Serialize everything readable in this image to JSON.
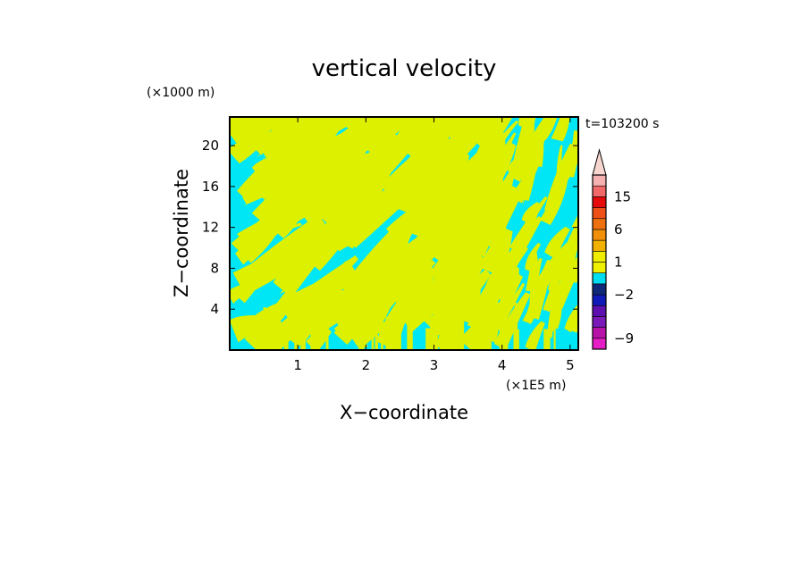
{
  "chart_data": {
    "type": "heatmap",
    "title": "vertical velocity",
    "xlabel": "X−coordinate",
    "ylabel": "Z−coordinate",
    "x_unit": "(×1E5 m)",
    "y_unit": "(×1000 m)",
    "time_label": "t=103200 s",
    "xlim": [
      0,
      5.12
    ],
    "ylim": [
      0,
      22.8
    ],
    "x_ticks": [
      1,
      2,
      3,
      4,
      5
    ],
    "x_tick_labels": [
      "1",
      "2",
      "3",
      "4",
      "5"
    ],
    "y_ticks": [
      4,
      8,
      12,
      16,
      20
    ],
    "y_tick_labels": [
      "4",
      "8",
      "12",
      "16",
      "20"
    ],
    "field_colors": {
      "positive": "#dcf000",
      "negative": "#00e6f5"
    },
    "colorbar": {
      "colors_bottom_to_top": [
        "#e51fc5",
        "#b713a8",
        "#7a18b8",
        "#5e0fb0",
        "#101ab8",
        "#102878",
        "#00dcf0",
        "#eff000",
        "#f0ee00",
        "#f2b000",
        "#f0900a",
        "#ee7010",
        "#ef5018",
        "#e60a0a",
        "#f06868",
        "#f5b0b0"
      ],
      "labels": [
        "−9",
        "−2",
        "1",
        "6",
        "15"
      ],
      "label_values": [
        -9,
        -2,
        1,
        6,
        15
      ],
      "extend": "max",
      "extend_color": "#f7d6d0"
    }
  }
}
